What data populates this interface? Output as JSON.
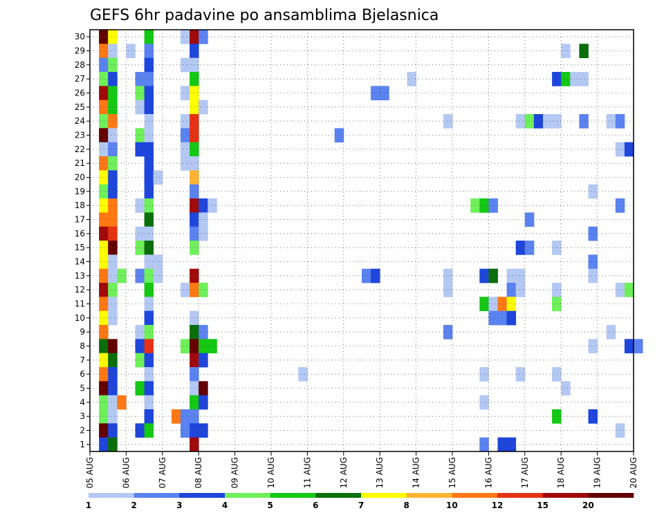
{
  "chart_data": {
    "type": "heatmap",
    "title": "GEFS 6hr padavine po ansamblima Bjelasnica",
    "xlabel": "",
    "ylabel": "",
    "time_step_hours": 6,
    "x_ticks": [
      "05 AUG",
      "06 AUG",
      "07 AUG",
      "08 AUG",
      "09 AUG",
      "10 AUG",
      "11 AUG",
      "12 AUG",
      "13 AUG",
      "14 AUG",
      "15 AUG",
      "16 AUG",
      "17 AUG",
      "18 AUG",
      "19 AUG",
      "20 AUG"
    ],
    "y_ticks": [
      "1",
      "2",
      "3",
      "4",
      "5",
      "6",
      "7",
      "8",
      "9",
      "10",
      "11",
      "12",
      "13",
      "14",
      "15",
      "16",
      "17",
      "18",
      "19",
      "20",
      "21",
      "22",
      "23",
      "24",
      "25",
      "26",
      "27",
      "28",
      "29",
      "30"
    ],
    "ylim": [
      0,
      30
    ],
    "grid": true,
    "legend": {
      "placement": "bottom",
      "levels": [
        "1",
        "2",
        "3",
        "4",
        "5",
        "6",
        "7",
        "8",
        "10",
        "12",
        "15",
        "20"
      ],
      "colors": [
        "#b4c8f4",
        "#5a82f0",
        "#1e46dc",
        "#6ef05a",
        "#14c814",
        "#0a6e0a",
        "#ffff00",
        "#ffb432",
        "#ff7814",
        "#e63214",
        "#a00a0a",
        "#640000"
      ]
    },
    "cells": [
      [
        30,
        "05 AUG",
        1,
        12
      ],
      [
        30,
        "05 AUG",
        2,
        7
      ],
      [
        30,
        "06 AUG",
        2,
        5
      ],
      [
        30,
        "07 AUG",
        2,
        1
      ],
      [
        30,
        "07 AUG",
        3,
        11
      ],
      [
        30,
        "07 AUG",
        4,
        2
      ],
      [
        29,
        "05 AUG",
        1,
        9
      ],
      [
        29,
        "05 AUG",
        2,
        1
      ],
      [
        29,
        "06 AUG",
        0,
        1
      ],
      [
        29,
        "06 AUG",
        2,
        2
      ],
      [
        29,
        "07 AUG",
        3,
        3
      ],
      [
        29,
        "18 AUG",
        0,
        1
      ],
      [
        29,
        "18 AUG",
        2,
        6
      ],
      [
        28,
        "05 AUG",
        1,
        2
      ],
      [
        28,
        "05 AUG",
        2,
        4
      ],
      [
        28,
        "06 AUG",
        2,
        3
      ],
      [
        28,
        "07 AUG",
        2,
        1
      ],
      [
        28,
        "07 AUG",
        3,
        1
      ],
      [
        27,
        "05 AUG",
        1,
        4
      ],
      [
        27,
        "05 AUG",
        2,
        3
      ],
      [
        27,
        "06 AUG",
        1,
        2
      ],
      [
        27,
        "06 AUG",
        2,
        2
      ],
      [
        27,
        "07 AUG",
        3,
        5
      ],
      [
        27,
        "13 AUG",
        3,
        1
      ],
      [
        27,
        "17 AUG",
        3,
        3
      ],
      [
        27,
        "18 AUG",
        0,
        5
      ],
      [
        27,
        "18 AUG",
        1,
        1
      ],
      [
        27,
        "18 AUG",
        2,
        1
      ],
      [
        26,
        "05 AUG",
        1,
        11
      ],
      [
        26,
        "05 AUG",
        2,
        5
      ],
      [
        26,
        "06 AUG",
        1,
        4
      ],
      [
        26,
        "06 AUG",
        2,
        3
      ],
      [
        26,
        "07 AUG",
        2,
        1
      ],
      [
        26,
        "07 AUG",
        3,
        7
      ],
      [
        26,
        "12 AUG",
        3,
        2
      ],
      [
        26,
        "13 AUG",
        0,
        2
      ],
      [
        25,
        "05 AUG",
        1,
        9
      ],
      [
        25,
        "05 AUG",
        2,
        5
      ],
      [
        25,
        "06 AUG",
        1,
        1
      ],
      [
        25,
        "06 AUG",
        2,
        3
      ],
      [
        25,
        "07 AUG",
        3,
        7
      ],
      [
        25,
        "08 AUG",
        0,
        1
      ],
      [
        24,
        "05 AUG",
        1,
        4
      ],
      [
        24,
        "05 AUG",
        2,
        9
      ],
      [
        24,
        "06 AUG",
        2,
        1
      ],
      [
        24,
        "07 AUG",
        2,
        1
      ],
      [
        24,
        "07 AUG",
        3,
        10
      ],
      [
        24,
        "14 AUG",
        3,
        1
      ],
      [
        24,
        "16 AUG",
        3,
        1
      ],
      [
        24,
        "17 AUG",
        0,
        4
      ],
      [
        24,
        "17 AUG",
        1,
        3
      ],
      [
        24,
        "17 AUG",
        2,
        1
      ],
      [
        24,
        "17 AUG",
        3,
        1
      ],
      [
        24,
        "18 AUG",
        2,
        2
      ],
      [
        24,
        "19 AUG",
        1,
        1
      ],
      [
        24,
        "19 AUG",
        2,
        2
      ],
      [
        23,
        "05 AUG",
        1,
        12
      ],
      [
        23,
        "05 AUG",
        2,
        1
      ],
      [
        23,
        "06 AUG",
        1,
        4
      ],
      [
        23,
        "06 AUG",
        2,
        1
      ],
      [
        23,
        "07 AUG",
        2,
        2
      ],
      [
        23,
        "07 AUG",
        3,
        10
      ],
      [
        23,
        "11 AUG",
        3,
        2
      ],
      [
        22,
        "05 AUG",
        1,
        1
      ],
      [
        22,
        "05 AUG",
        2,
        2
      ],
      [
        22,
        "06 AUG",
        1,
        3
      ],
      [
        22,
        "06 AUG",
        2,
        3
      ],
      [
        22,
        "07 AUG",
        2,
        1
      ],
      [
        22,
        "07 AUG",
        3,
        5
      ],
      [
        22,
        "19 AUG",
        2,
        1
      ],
      [
        22,
        "19 AUG",
        3,
        3
      ],
      [
        21,
        "05 AUG",
        1,
        9
      ],
      [
        21,
        "05 AUG",
        2,
        4
      ],
      [
        21,
        "06 AUG",
        2,
        3
      ],
      [
        21,
        "07 AUG",
        2,
        1
      ],
      [
        21,
        "07 AUG",
        3,
        1
      ],
      [
        20,
        "05 AUG",
        1,
        7
      ],
      [
        20,
        "05 AUG",
        2,
        3
      ],
      [
        20,
        "06 AUG",
        2,
        3
      ],
      [
        20,
        "06 AUG",
        3,
        1
      ],
      [
        20,
        "07 AUG",
        3,
        8
      ],
      [
        19,
        "05 AUG",
        1,
        4
      ],
      [
        19,
        "05 AUG",
        2,
        3
      ],
      [
        19,
        "06 AUG",
        2,
        3
      ],
      [
        19,
        "07 AUG",
        3,
        2
      ],
      [
        19,
        "18 AUG",
        3,
        1
      ],
      [
        18,
        "05 AUG",
        1,
        7
      ],
      [
        18,
        "05 AUG",
        2,
        9
      ],
      [
        18,
        "06 AUG",
        1,
        1
      ],
      [
        18,
        "06 AUG",
        2,
        4
      ],
      [
        18,
        "07 AUG",
        3,
        11
      ],
      [
        18,
        "08 AUG",
        0,
        3
      ],
      [
        18,
        "08 AUG",
        1,
        1
      ],
      [
        18,
        "15 AUG",
        2,
        4
      ],
      [
        18,
        "15 AUG",
        3,
        5
      ],
      [
        18,
        "16 AUG",
        0,
        2
      ],
      [
        18,
        "19 AUG",
        2,
        2
      ],
      [
        17,
        "05 AUG",
        1,
        9
      ],
      [
        17,
        "05 AUG",
        2,
        9
      ],
      [
        17,
        "06 AUG",
        2,
        6
      ],
      [
        17,
        "07 AUG",
        3,
        3
      ],
      [
        17,
        "08 AUG",
        0,
        1
      ],
      [
        17,
        "17 AUG",
        0,
        2
      ],
      [
        16,
        "05 AUG",
        1,
        11
      ],
      [
        16,
        "05 AUG",
        2,
        10
      ],
      [
        16,
        "06 AUG",
        1,
        1
      ],
      [
        16,
        "06 AUG",
        2,
        1
      ],
      [
        16,
        "07 AUG",
        3,
        2
      ],
      [
        16,
        "08 AUG",
        0,
        1
      ],
      [
        16,
        "18 AUG",
        3,
        2
      ],
      [
        15,
        "05 AUG",
        1,
        7
      ],
      [
        15,
        "05 AUG",
        2,
        12
      ],
      [
        15,
        "06 AUG",
        1,
        4
      ],
      [
        15,
        "06 AUG",
        2,
        6
      ],
      [
        15,
        "07 AUG",
        3,
        4
      ],
      [
        15,
        "16 AUG",
        3,
        3
      ],
      [
        15,
        "17 AUG",
        0,
        2
      ],
      [
        15,
        "17 AUG",
        3,
        1
      ],
      [
        14,
        "05 AUG",
        1,
        7
      ],
      [
        14,
        "05 AUG",
        2,
        1
      ],
      [
        14,
        "06 AUG",
        2,
        1
      ],
      [
        14,
        "06 AUG",
        3,
        1
      ],
      [
        14,
        "18 AUG",
        3,
        2
      ],
      [
        13,
        "05 AUG",
        1,
        9
      ],
      [
        13,
        "05 AUG",
        2,
        1
      ],
      [
        13,
        "05 AUG",
        3,
        4
      ],
      [
        13,
        "06 AUG",
        1,
        2
      ],
      [
        13,
        "06 AUG",
        2,
        4
      ],
      [
        13,
        "06 AUG",
        3,
        1
      ],
      [
        13,
        "07 AUG",
        3,
        11
      ],
      [
        13,
        "12 AUG",
        2,
        2
      ],
      [
        13,
        "12 AUG",
        3,
        3
      ],
      [
        13,
        "14 AUG",
        3,
        1
      ],
      [
        13,
        "15 AUG",
        3,
        3
      ],
      [
        13,
        "16 AUG",
        0,
        6
      ],
      [
        13,
        "16 AUG",
        2,
        1
      ],
      [
        13,
        "16 AUG",
        3,
        1
      ],
      [
        13,
        "18 AUG",
        3,
        1
      ],
      [
        12,
        "05 AUG",
        1,
        11
      ],
      [
        12,
        "05 AUG",
        2,
        4
      ],
      [
        12,
        "06 AUG",
        2,
        5
      ],
      [
        12,
        "07 AUG",
        2,
        1
      ],
      [
        12,
        "07 AUG",
        3,
        9
      ],
      [
        12,
        "08 AUG",
        0,
        4
      ],
      [
        12,
        "14 AUG",
        3,
        1
      ],
      [
        12,
        "16 AUG",
        2,
        2
      ],
      [
        12,
        "16 AUG",
        3,
        1
      ],
      [
        12,
        "17 AUG",
        3,
        1
      ],
      [
        12,
        "19 AUG",
        2,
        1
      ],
      [
        12,
        "19 AUG",
        3,
        4
      ],
      [
        11,
        "05 AUG",
        1,
        9
      ],
      [
        11,
        "05 AUG",
        2,
        1
      ],
      [
        11,
        "06 AUG",
        2,
        1
      ],
      [
        11,
        "15 AUG",
        3,
        5
      ],
      [
        11,
        "16 AUG",
        0,
        1
      ],
      [
        11,
        "16 AUG",
        1,
        9
      ],
      [
        11,
        "16 AUG",
        2,
        7
      ],
      [
        11,
        "17 AUG",
        3,
        4
      ],
      [
        10,
        "05 AUG",
        1,
        7
      ],
      [
        10,
        "05 AUG",
        2,
        1
      ],
      [
        10,
        "06 AUG",
        2,
        3
      ],
      [
        10,
        "07 AUG",
        3,
        1
      ],
      [
        10,
        "16 AUG",
        0,
        2
      ],
      [
        10,
        "16 AUG",
        1,
        2
      ],
      [
        10,
        "16 AUG",
        2,
        3
      ],
      [
        9,
        "05 AUG",
        1,
        9
      ],
      [
        9,
        "06 AUG",
        1,
        1
      ],
      [
        9,
        "06 AUG",
        2,
        4
      ],
      [
        9,
        "07 AUG",
        3,
        6
      ],
      [
        9,
        "08 AUG",
        0,
        2
      ],
      [
        9,
        "14 AUG",
        3,
        2
      ],
      [
        9,
        "19 AUG",
        1,
        1
      ],
      [
        8,
        "05 AUG",
        1,
        6
      ],
      [
        8,
        "05 AUG",
        2,
        12
      ],
      [
        8,
        "06 AUG",
        1,
        3
      ],
      [
        8,
        "06 AUG",
        2,
        10
      ],
      [
        8,
        "07 AUG",
        2,
        4
      ],
      [
        8,
        "07 AUG",
        3,
        12
      ],
      [
        8,
        "08 AUG",
        0,
        5
      ],
      [
        8,
        "08 AUG",
        1,
        5
      ],
      [
        8,
        "18 AUG",
        3,
        1
      ],
      [
        8,
        "19 AUG",
        3,
        3
      ],
      [
        8,
        "20 AUG",
        0,
        2
      ],
      [
        7,
        "05 AUG",
        1,
        7
      ],
      [
        7,
        "05 AUG",
        2,
        6
      ],
      [
        7,
        "06 AUG",
        1,
        4
      ],
      [
        7,
        "06 AUG",
        2,
        3
      ],
      [
        7,
        "07 AUG",
        3,
        11
      ],
      [
        7,
        "08 AUG",
        0,
        3
      ],
      [
        6,
        "05 AUG",
        1,
        9
      ],
      [
        6,
        "05 AUG",
        2,
        3
      ],
      [
        6,
        "06 AUG",
        2,
        1
      ],
      [
        6,
        "07 AUG",
        3,
        2
      ],
      [
        6,
        "10 AUG",
        3,
        1
      ],
      [
        6,
        "15 AUG",
        3,
        1
      ],
      [
        6,
        "16 AUG",
        3,
        1
      ],
      [
        6,
        "17 AUG",
        3,
        1
      ],
      [
        5,
        "05 AUG",
        1,
        12
      ],
      [
        5,
        "05 AUG",
        2,
        3
      ],
      [
        5,
        "06 AUG",
        1,
        5
      ],
      [
        5,
        "06 AUG",
        2,
        3
      ],
      [
        5,
        "07 AUG",
        3,
        1
      ],
      [
        5,
        "08 AUG",
        0,
        12
      ],
      [
        5,
        "18 AUG",
        0,
        1
      ],
      [
        4,
        "05 AUG",
        1,
        4
      ],
      [
        4,
        "05 AUG",
        2,
        1
      ],
      [
        4,
        "05 AUG",
        3,
        9
      ],
      [
        4,
        "06 AUG",
        2,
        1
      ],
      [
        4,
        "07 AUG",
        3,
        5
      ],
      [
        4,
        "08 AUG",
        0,
        3
      ],
      [
        4,
        "15 AUG",
        3,
        1
      ],
      [
        3,
        "05 AUG",
        1,
        4
      ],
      [
        3,
        "05 AUG",
        2,
        1
      ],
      [
        3,
        "06 AUG",
        2,
        3
      ],
      [
        3,
        "07 AUG",
        1,
        9
      ],
      [
        3,
        "07 AUG",
        2,
        2
      ],
      [
        3,
        "07 AUG",
        3,
        2
      ],
      [
        3,
        "17 AUG",
        3,
        5
      ],
      [
        3,
        "18 AUG",
        3,
        3
      ],
      [
        2,
        "05 AUG",
        1,
        12
      ],
      [
        2,
        "05 AUG",
        2,
        3
      ],
      [
        2,
        "06 AUG",
        1,
        3
      ],
      [
        2,
        "06 AUG",
        2,
        5
      ],
      [
        2,
        "07 AUG",
        2,
        2
      ],
      [
        2,
        "07 AUG",
        3,
        3
      ],
      [
        2,
        "08 AUG",
        0,
        3
      ],
      [
        2,
        "19 AUG",
        2,
        1
      ],
      [
        1,
        "05 AUG",
        1,
        3
      ],
      [
        1,
        "05 AUG",
        2,
        6
      ],
      [
        1,
        "07 AUG",
        3,
        11
      ],
      [
        1,
        "15 AUG",
        3,
        2
      ],
      [
        1,
        "16 AUG",
        1,
        3
      ],
      [
        1,
        "16 AUG",
        2,
        3
      ]
    ]
  }
}
